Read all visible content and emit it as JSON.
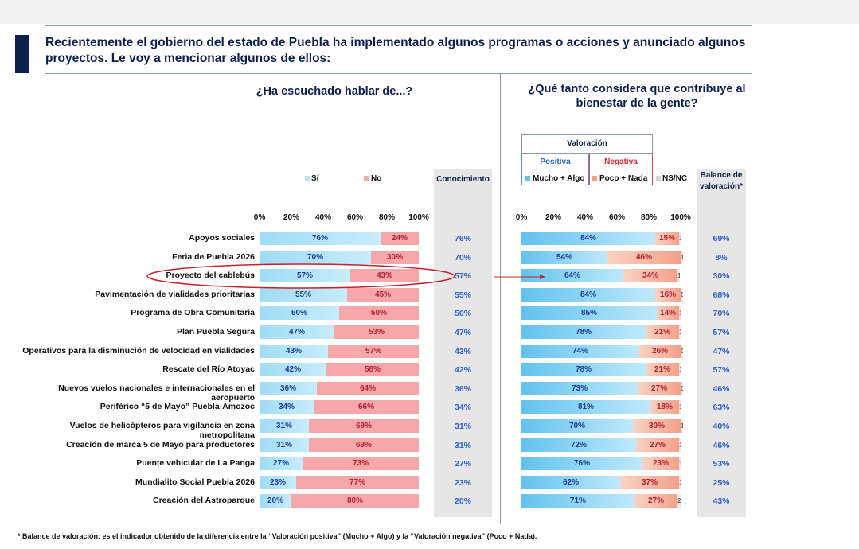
{
  "header": {
    "title": "Recientemente el gobierno del estado de Puebla ha implementado algunos programas o acciones y anunciado algunos proyectos. Le voy a mencionar algunos de ellos:",
    "question_left": "¿Ha escuchado hablar de...?",
    "question_right": "¿Qué tanto considera que contribuye al bienestar de la gente?"
  },
  "legend": {
    "si": "Sí",
    "no": "No",
    "conocimiento": "Conocimiento",
    "valoracion": "Valoración",
    "positiva": "Positiva",
    "negativa": "Negativa",
    "mucho_algo": "Mucho + Algo",
    "poco_nada": "Poco + Nada",
    "nsnc": "NS/NC",
    "balance": "Balance de valoración*"
  },
  "colors": {
    "si": "#b7e6f8",
    "no": "#f6a7a9",
    "positiva": "#62c2ee",
    "negativa": "#f4a08a",
    "nsnc": "#e9e9e9",
    "accent": "#0b1f4d",
    "value_text": "#2e63c7",
    "highlight": "#c0232b"
  },
  "axis_ticks": [
    "0%",
    "20%",
    "40%",
    "60%",
    "80%",
    "100%"
  ],
  "chart_data": [
    {
      "type": "bar",
      "stacked": true,
      "orientation": "horizontal",
      "title": "¿Ha escuchado hablar de...?",
      "categories": [
        "Apoyos sociales",
        "Feria de Puebla 2026",
        "Proyecto del cablebús",
        "Pavimentación de vialidades prioritarias",
        "Programa de Obra Comunitaria",
        "Plan Puebla Segura",
        "Operativos para la disminución de velocidad en vialidades",
        "Rescate del Río Atoyac",
        "Nuevos vuelos nacionales e internacionales en el aeropuerto",
        "Periférico “5 de Mayo” Puebla-Amozoc",
        "Vuelos de helicópteros para vigilancia en zona metropolitana",
        "Creación de marca 5 de Mayo para productores",
        "Puente vehicular de La Panga",
        "Mundialito Social Puebla 2026",
        "Creación del Astroparque"
      ],
      "series": [
        {
          "name": "Sí",
          "values": [
            76,
            70,
            57,
            55,
            50,
            47,
            43,
            42,
            36,
            34,
            31,
            31,
            27,
            23,
            20
          ]
        },
        {
          "name": "No",
          "values": [
            24,
            30,
            43,
            45,
            50,
            53,
            57,
            58,
            64,
            66,
            69,
            69,
            73,
            77,
            80
          ]
        }
      ],
      "conocimiento": [
        76,
        70,
        57,
        55,
        50,
        47,
        43,
        42,
        36,
        34,
        31,
        31,
        27,
        23,
        20
      ],
      "xlim": [
        0,
        100
      ],
      "highlighted_category": "Proyecto del cablebús"
    },
    {
      "type": "bar",
      "stacked": true,
      "orientation": "horizontal",
      "title": "¿Qué tanto considera que contribuye al bienestar de la gente?",
      "series": [
        {
          "name": "Mucho + Algo",
          "values": [
            84,
            54,
            64,
            84,
            85,
            78,
            74,
            78,
            73,
            81,
            70,
            72,
            76,
            62,
            71
          ]
        },
        {
          "name": "Poco + Nada",
          "values": [
            15,
            46,
            34,
            16,
            14,
            21,
            26,
            21,
            27,
            18,
            30,
            27,
            23,
            37,
            27
          ]
        },
        {
          "name": "NS/NC",
          "values": [
            1,
            1,
            1,
            0,
            1,
            1,
            0,
            1,
            0,
            1,
            1,
            1,
            1,
            1,
            2
          ]
        }
      ],
      "balance": [
        69,
        8,
        30,
        68,
        70,
        57,
        47,
        57,
        46,
        63,
        40,
        46,
        53,
        25,
        43
      ],
      "xlim": [
        0,
        100
      ]
    }
  ],
  "footnote": "* Balance de valoración: es el indicador obtenido de la diferencia entre la “Valoración positiva” (Mucho + Algo) y la “Valoración negativa” (Poco + Nada)."
}
